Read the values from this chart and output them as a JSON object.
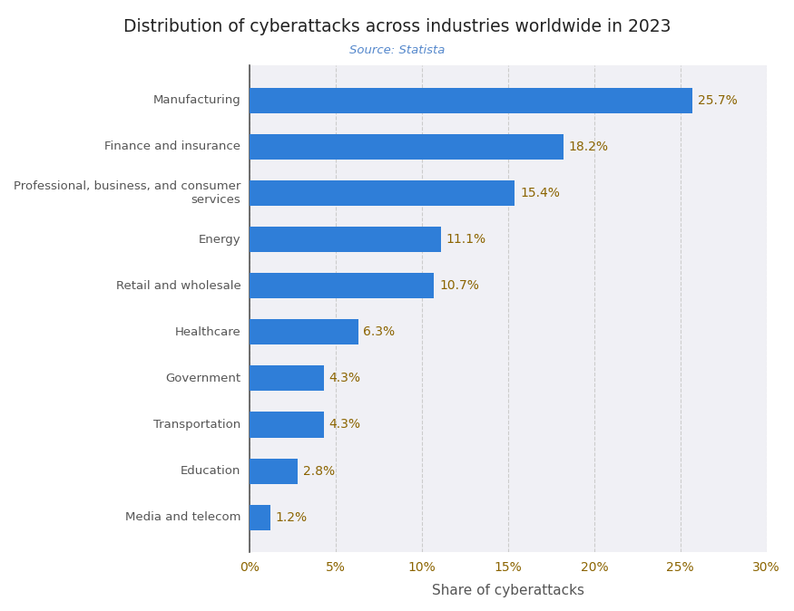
{
  "title": "Distribution of cyberattacks across industries worldwide in 2023",
  "subtitle": "Source: Statista",
  "xlabel": "Share of cyberattacks",
  "categories": [
    "Media and telecom",
    "Education",
    "Transportation",
    "Government",
    "Healthcare",
    "Retail and wholesale",
    "Energy",
    "Professional, business, and consumer\nservices",
    "Finance and insurance",
    "Manufacturing"
  ],
  "values": [
    1.2,
    2.8,
    4.3,
    4.3,
    6.3,
    10.7,
    11.1,
    15.4,
    18.2,
    25.7
  ],
  "bar_color": "#2f7ed8",
  "value_label_color": "#8b6400",
  "ytick_color": "#555555",
  "xtick_color": "#8b6400",
  "xlabel_color": "#555555",
  "title_color": "#222222",
  "subtitle_color": "#5588cc",
  "background_color": "#ffffff",
  "plot_bg_color": "#f0f0f5",
  "xlim": [
    0,
    30
  ],
  "xticks": [
    0,
    5,
    10,
    15,
    20,
    25,
    30
  ],
  "xtick_labels": [
    "0%",
    "5%",
    "10%",
    "15%",
    "20%",
    "25%",
    "30%"
  ],
  "grid_color": "#cccccc",
  "spine_color": "#555555"
}
